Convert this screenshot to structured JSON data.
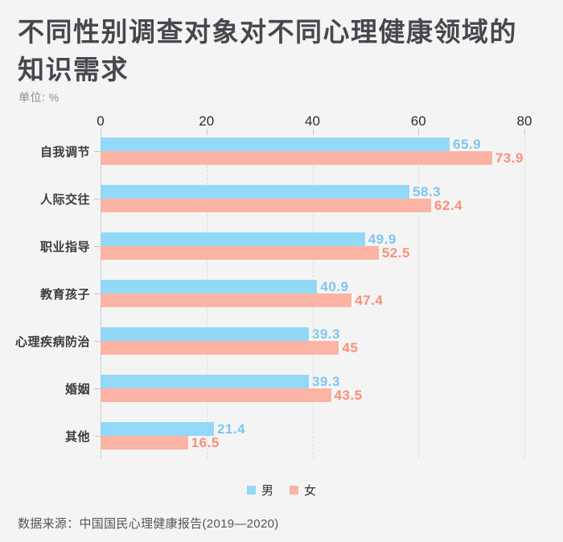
{
  "title_lines": [
    "不同性别调查对象对不同心理健康领域的",
    "知识需求"
  ],
  "unit_label": "单位: %",
  "source": "数据来源：中国国民心理健康报告(2019—2020)",
  "colors": {
    "background": "#f4f4f4",
    "title_text": "#47474e",
    "male_bar": "#92d8f7",
    "male_label": "#7cc7ef",
    "female_bar": "#fbb4a3",
    "female_label": "#f98f7b",
    "axis_line": "#cccccc",
    "gridline": "#dcdcdc"
  },
  "legend": [
    {
      "label": "男",
      "color": "#92d8f7"
    },
    {
      "label": "女",
      "color": "#fbb4a3"
    }
  ],
  "chart_data": {
    "type": "bar",
    "orientation": "horizontal",
    "title": "不同性别调查对象对不同心理健康领域的知识需求",
    "unit": "%",
    "categories": [
      "自我调节",
      "人际交往",
      "职业指导",
      "教育孩子",
      "心理疾病防治",
      "婚姻",
      "其他"
    ],
    "series": [
      {
        "name": "男",
        "color": "#92d8f7",
        "label_color": "#7cc7ef",
        "values": [
          65.9,
          58.3,
          49.9,
          40.9,
          39.3,
          39.3,
          21.4
        ]
      },
      {
        "name": "女",
        "color": "#fbb4a3",
        "label_color": "#f98f7b",
        "values": [
          73.9,
          62.4,
          52.5,
          47.4,
          45,
          43.5,
          16.5
        ]
      }
    ],
    "x_ticks": [
      0,
      20,
      40,
      60,
      80
    ],
    "xlim": [
      0,
      80
    ],
    "grid": "dashed-vertical",
    "legend_position": "bottom"
  }
}
